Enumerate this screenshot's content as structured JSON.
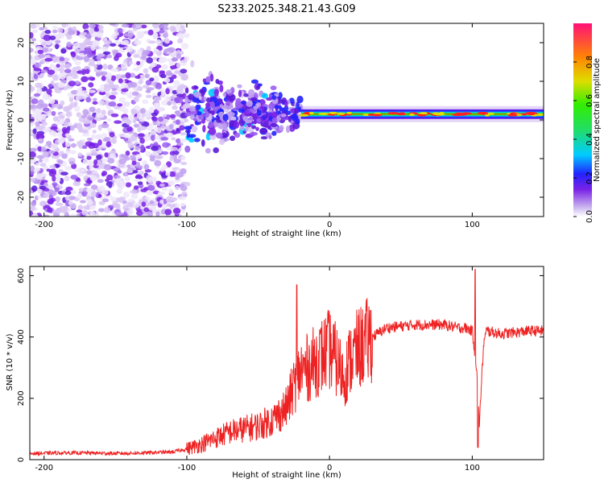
{
  "figure_title": "S233.2025.348.21.43.G09",
  "colors": {
    "snr_line": "#ee2222",
    "spec_low": "#e4d6f4",
    "spec_purple": "#7a22e6"
  },
  "chart_data": [
    {
      "type": "heatmap",
      "title": "",
      "xlabel": "Height of straight line (km)",
      "ylabel": "Frequency (Hz)",
      "xlim": [
        -210,
        150
      ],
      "ylim": [
        -25,
        25
      ],
      "xticks": [
        -200,
        -100,
        0,
        100
      ],
      "yticks": [
        -20,
        -10,
        0,
        10,
        20
      ],
      "colorbar": {
        "label": "Normalized spectral amplitude",
        "range": [
          0,
          1
        ],
        "ticks": [
          0.0,
          0.2,
          0.4,
          0.6,
          0.8
        ]
      },
      "features": [
        {
          "x_range": [
            -210,
            -100
          ],
          "y_range": [
            -25,
            25
          ],
          "amplitude": 0.1,
          "description": "scattered noise"
        },
        {
          "x_range": [
            -100,
            -20
          ],
          "center_y": 2,
          "spread_y": 10,
          "amplitude": 0.3
        },
        {
          "x_range": [
            -20,
            150
          ],
          "center_y": 1.5,
          "spread_y": 1,
          "amplitude": 0.95
        }
      ]
    },
    {
      "type": "line",
      "title": "",
      "xlabel": "Height of straight line (km)",
      "ylabel": "SNR (10 * v/v)",
      "xlim": [
        -210,
        150
      ],
      "ylim": [
        0,
        630
      ],
      "xticks": [
        -200,
        -100,
        0,
        100
      ],
      "yticks": [
        0,
        200,
        400,
        600
      ],
      "series": [
        {
          "name": "SNR",
          "x": [
            -210,
            -190,
            -170,
            -150,
            -130,
            -110,
            -100,
            -90,
            -80,
            -70,
            -60,
            -50,
            -40,
            -30,
            -25,
            -20,
            -15,
            -10,
            -5,
            0,
            5,
            10,
            15,
            20,
            30,
            40,
            50,
            60,
            70,
            80,
            90,
            95,
            100,
            103,
            105,
            108,
            110,
            120,
            130,
            140,
            150
          ],
          "y": [
            20,
            22,
            22,
            20,
            22,
            25,
            35,
            50,
            70,
            90,
            100,
            110,
            130,
            170,
            240,
            290,
            300,
            320,
            340,
            360,
            320,
            270,
            330,
            360,
            400,
            430,
            435,
            440,
            440,
            440,
            430,
            430,
            420,
            300,
            120,
            380,
            420,
            410,
            415,
            420,
            420
          ]
        }
      ],
      "spikes": [
        {
          "x": -23,
          "y": 570
        },
        {
          "x": 102,
          "y": 620
        },
        {
          "x": 104,
          "y": 40
        }
      ]
    }
  ]
}
